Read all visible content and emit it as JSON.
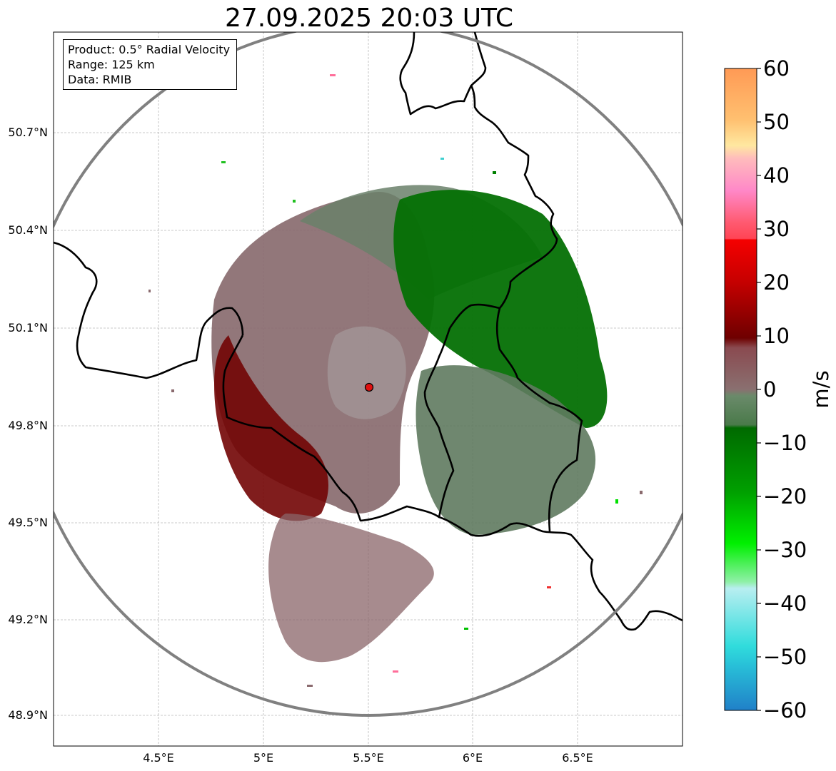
{
  "title": "27.09.2025 20:03 UTC",
  "info_box": {
    "product": "Product: 0.5° Radial Velocity",
    "range": "Range: 125 km",
    "data": "Data: RMIB"
  },
  "map": {
    "x_ticks": [
      "4.5°E",
      "5°E",
      "5.5°E",
      "6°E",
      "6.5°E"
    ],
    "y_ticks": [
      "50.7°N",
      "50.4°N",
      "50.1°N",
      "49.8°N",
      "49.5°N",
      "49.2°N",
      "48.9°N"
    ],
    "radar_site": {
      "lon": 5.5,
      "lat": 49.91
    },
    "range_ring_km": 125
  },
  "colorbar": {
    "label": "m/s",
    "ticks": [
      "60",
      "50",
      "40",
      "30",
      "20",
      "10",
      "0",
      "−10",
      "−20",
      "−30",
      "−40",
      "−50",
      "−60"
    ],
    "min": -60,
    "max": 60,
    "colors": {
      "high": "#ff9a55",
      "pink": "#ff6e9a",
      "red": "#f50000",
      "dark_red": "#6e0000",
      "neutral_red": "#8a6a6e",
      "neutral_green": "#5a7a5a",
      "dark_green": "#006a00",
      "green": "#00f000",
      "light_cyan": "#b8eef0",
      "cyan": "#30dcdc",
      "blue": "#2080c8"
    }
  }
}
